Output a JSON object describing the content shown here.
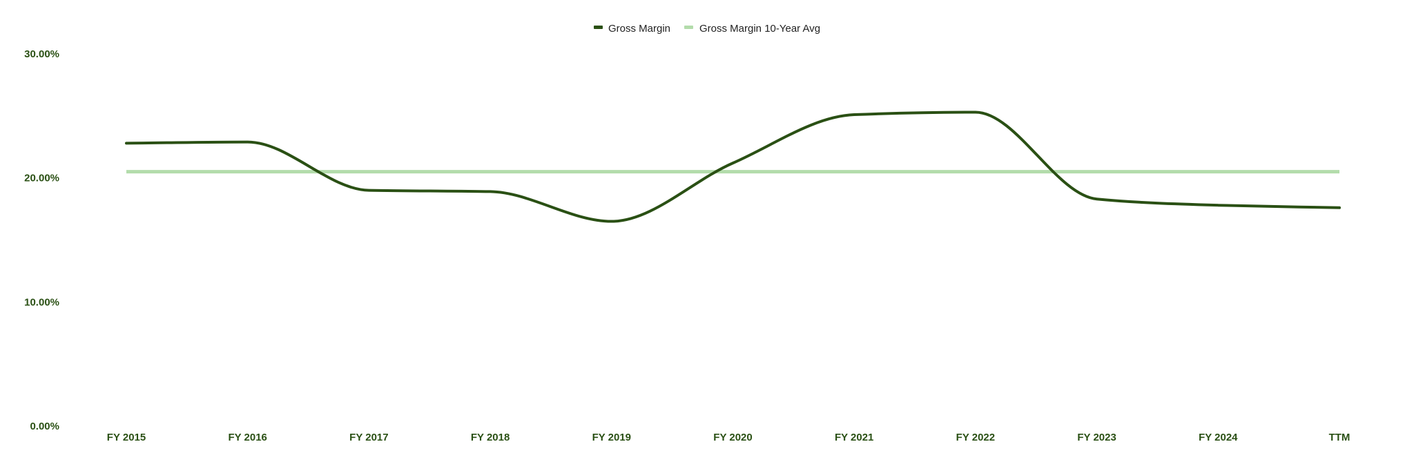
{
  "colors": {
    "gross_margin": "#2a5014",
    "ten_year_avg": "#b3dcab",
    "tick_label": "#2a5014"
  },
  "chart_data": {
    "type": "line",
    "title": "",
    "xlabel": "",
    "ylabel": "",
    "categories": [
      "FY 2015",
      "FY 2016",
      "FY 2017",
      "FY 2018",
      "FY 2019",
      "FY 2020",
      "FY 2021",
      "FY 2022",
      "FY 2023",
      "FY 2024",
      "TTM"
    ],
    "y_ticks": [
      "0.00%",
      "10.00%",
      "20.00%",
      "30.00%"
    ],
    "y_tick_values": [
      0,
      10,
      20,
      30
    ],
    "ylim": [
      0,
      30
    ],
    "grid": false,
    "legend_position": "top-center",
    "series": [
      {
        "name": "Gross Margin",
        "values": [
          22.8,
          22.9,
          19.0,
          18.9,
          16.5,
          21.2,
          25.1,
          25.3,
          18.3,
          17.8,
          17.6
        ]
      },
      {
        "name": "Gross Margin 10-Year Avg",
        "values": [
          20.5,
          20.5,
          20.5,
          20.5,
          20.5,
          20.5,
          20.5,
          20.5,
          20.5,
          20.5,
          20.5
        ]
      }
    ]
  }
}
